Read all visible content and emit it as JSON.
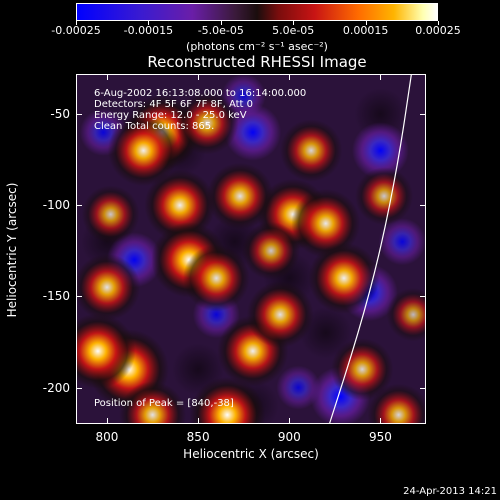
{
  "colorbar": {
    "ticks": [
      "-0.00025",
      "-0.00015",
      "-5.0e-05",
      "5.0e-05",
      "0.00015",
      "0.00025"
    ],
    "unit": "(photons cm⁻² s⁻¹ asec⁻²)",
    "colors": [
      "#0000ff",
      "#6a1ea8",
      "#1a0d0d",
      "#c81414",
      "#ffb400",
      "#ffffff"
    ]
  },
  "chart_data": {
    "type": "heatmap",
    "title": "Reconstructed RHESSI Image",
    "xlabel": "Heliocentric X (arcsec)",
    "ylabel": "Heliocentric Y (arcsec)",
    "xlim": [
      783,
      975
    ],
    "ylim": [
      -220,
      -28
    ],
    "xticks": [
      800,
      850,
      900,
      950
    ],
    "yticks": [
      -50,
      -100,
      -150,
      -200
    ],
    "info": [
      "6-Aug-2002 16:13:08.000 to 16:14:00.000",
      "Detectors: 4F 5F 6F 7F 8F, Att 0",
      "Energy Range: 12.0 - 25.0 keV",
      "Clean     Total counts: 865."
    ],
    "peak_label": "Position of Peak = [840,-38]",
    "solar_limb_points": [
      [
        967,
        -28
      ],
      [
        960,
        -75
      ],
      [
        950,
        -125
      ],
      [
        938,
        -170
      ],
      [
        922,
        -220
      ]
    ],
    "sources": [
      {
        "x": 812,
        "y": -190,
        "v": 1.0
      },
      {
        "x": 830,
        "y": -60,
        "v": 0.9
      },
      {
        "x": 820,
        "y": -70,
        "v": 0.8
      },
      {
        "x": 840,
        "y": -100,
        "v": 0.8
      },
      {
        "x": 845,
        "y": -130,
        "v": 0.9
      },
      {
        "x": 860,
        "y": -140,
        "v": 0.7
      },
      {
        "x": 866,
        "y": -215,
        "v": 0.9
      },
      {
        "x": 880,
        "y": -180,
        "v": 0.8
      },
      {
        "x": 895,
        "y": -160,
        "v": 0.7
      },
      {
        "x": 902,
        "y": -105,
        "v": 0.8
      },
      {
        "x": 920,
        "y": -110,
        "v": 0.75
      },
      {
        "x": 930,
        "y": -140,
        "v": 0.8
      },
      {
        "x": 873,
        "y": -95,
        "v": 0.7
      },
      {
        "x": 912,
        "y": -70,
        "v": 0.6
      },
      {
        "x": 800,
        "y": -145,
        "v": 0.7
      },
      {
        "x": 940,
        "y": -190,
        "v": 0.6
      },
      {
        "x": 952,
        "y": -95,
        "v": 0.5
      },
      {
        "x": 960,
        "y": -215,
        "v": 0.6
      },
      {
        "x": 855,
        "y": -55,
        "v": 0.6
      },
      {
        "x": 795,
        "y": -180,
        "v": 0.9
      },
      {
        "x": 890,
        "y": -125,
        "v": 0.5
      },
      {
        "x": 968,
        "y": -160,
        "v": 0.4
      },
      {
        "x": 825,
        "y": -215,
        "v": 0.7
      },
      {
        "x": 802,
        "y": -105,
        "v": 0.5
      }
    ],
    "negative_spots": [
      {
        "x": 880,
        "y": -60,
        "v": 0.9
      },
      {
        "x": 950,
        "y": -70,
        "v": 0.9
      },
      {
        "x": 815,
        "y": -130,
        "v": 0.85
      },
      {
        "x": 944,
        "y": -148,
        "v": 0.9
      },
      {
        "x": 928,
        "y": -205,
        "v": 1.0
      },
      {
        "x": 860,
        "y": -160,
        "v": 0.6
      },
      {
        "x": 905,
        "y": -200,
        "v": 0.5
      },
      {
        "x": 962,
        "y": -120,
        "v": 0.6
      },
      {
        "x": 875,
        "y": -40,
        "v": 0.5
      },
      {
        "x": 798,
        "y": -60,
        "v": 0.6
      }
    ]
  },
  "timestamp": "24-Apr-2013 14:21"
}
